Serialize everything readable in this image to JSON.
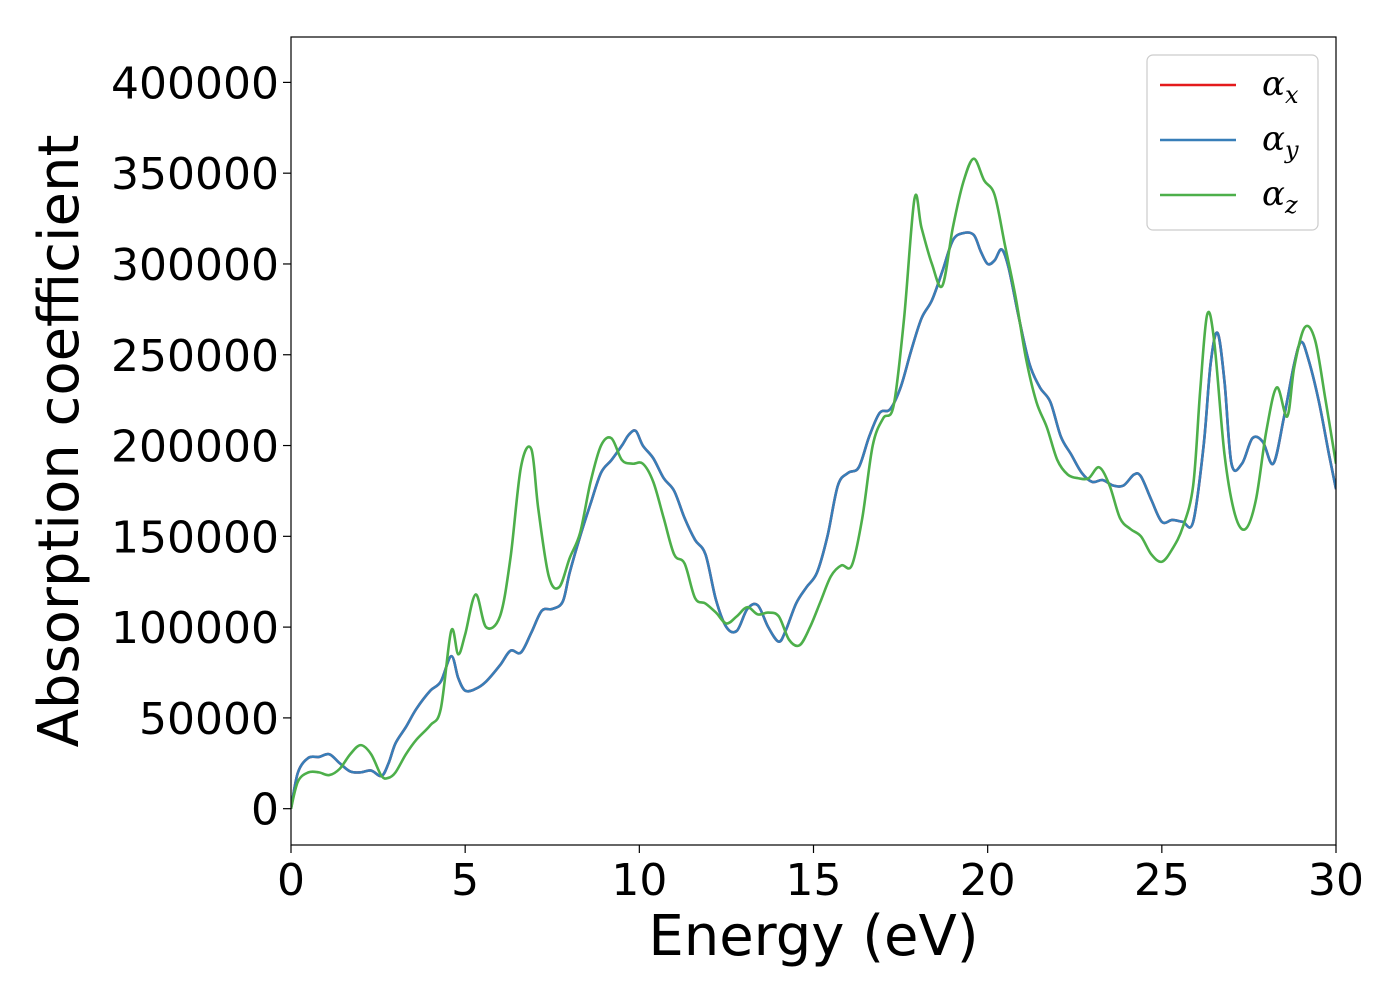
{
  "chart_data": {
    "type": "line",
    "xlabel": "Energy (eV)",
    "ylabel": "Absorption coefficient",
    "xlim": [
      0,
      30
    ],
    "ylim": [
      -20000,
      425000
    ],
    "xticks": [
      0,
      5,
      10,
      15,
      20,
      25,
      30
    ],
    "yticks": [
      0,
      50000,
      100000,
      150000,
      200000,
      250000,
      300000,
      350000,
      400000
    ],
    "grid": false,
    "legend_position": "top-right",
    "series": [
      {
        "name": "α",
        "subscript": "x",
        "color": "#e41a1c",
        "x": [
          0,
          0.2,
          0.5,
          0.8,
          1.1,
          1.4,
          1.7,
          2.0,
          2.3,
          2.6,
          2.8,
          3.0,
          3.3,
          3.6,
          4.0,
          4.3,
          4.6,
          4.8,
          5.0,
          5.3,
          5.6,
          6.0,
          6.3,
          6.6,
          6.9,
          7.2,
          7.5,
          7.8,
          8.0,
          8.3,
          8.6,
          8.9,
          9.2,
          9.5,
          9.7,
          9.9,
          10.1,
          10.4,
          10.7,
          11.0,
          11.3,
          11.6,
          11.9,
          12.2,
          12.5,
          12.8,
          13.1,
          13.4,
          13.7,
          14.0,
          14.2,
          14.5,
          14.8,
          15.1,
          15.4,
          15.7,
          16.0,
          16.3,
          16.6,
          16.9,
          17.2,
          17.5,
          17.8,
          18.1,
          18.4,
          18.7,
          19.0,
          19.3,
          19.6,
          19.8,
          20.0,
          20.2,
          20.4,
          20.6,
          20.9,
          21.2,
          21.5,
          21.8,
          22.1,
          22.4,
          22.7,
          23.0,
          23.3,
          23.6,
          23.9,
          24.2,
          24.4,
          24.7,
          25.0,
          25.3,
          25.6,
          25.9,
          26.2,
          26.4,
          26.6,
          26.8,
          27.0,
          27.3,
          27.6,
          27.9,
          28.2,
          28.5,
          28.8,
          29.0,
          29.2,
          29.5,
          29.8,
          30.0
        ],
        "y": [
          0,
          20000,
          28000,
          28500,
          30000,
          25000,
          20500,
          20000,
          21000,
          18000,
          25000,
          36000,
          45000,
          55000,
          65000,
          70000,
          84000,
          72000,
          65000,
          66000,
          70000,
          79000,
          87000,
          86000,
          97000,
          109000,
          110000,
          114000,
          130000,
          150000,
          168000,
          185000,
          192000,
          200000,
          206000,
          208000,
          200000,
          193000,
          182000,
          175000,
          160000,
          148000,
          140000,
          115000,
          100000,
          98000,
          110000,
          112000,
          100000,
          92000,
          98000,
          113000,
          122000,
          130000,
          150000,
          178000,
          185000,
          188000,
          205000,
          218000,
          220000,
          232000,
          252000,
          270000,
          280000,
          296000,
          313000,
          317000,
          316000,
          307000,
          300000,
          302000,
          308000,
          298000,
          270000,
          245000,
          232000,
          224000,
          205000,
          195000,
          185000,
          180000,
          181000,
          178000,
          178000,
          184000,
          183000,
          170000,
          158000,
          159000,
          158000,
          158000,
          200000,
          245000,
          262000,
          235000,
          190000,
          190000,
          204000,
          202000,
          190000,
          215000,
          245000,
          257000,
          248000,
          225000,
          195000,
          176000
        ]
      },
      {
        "name": "α",
        "subscript": "y",
        "color": "#377eb8",
        "x": [
          0,
          0.2,
          0.5,
          0.8,
          1.1,
          1.4,
          1.7,
          2.0,
          2.3,
          2.6,
          2.8,
          3.0,
          3.3,
          3.6,
          4.0,
          4.3,
          4.6,
          4.8,
          5.0,
          5.3,
          5.6,
          6.0,
          6.3,
          6.6,
          6.9,
          7.2,
          7.5,
          7.8,
          8.0,
          8.3,
          8.6,
          8.9,
          9.2,
          9.5,
          9.7,
          9.9,
          10.1,
          10.4,
          10.7,
          11.0,
          11.3,
          11.6,
          11.9,
          12.2,
          12.5,
          12.8,
          13.1,
          13.4,
          13.7,
          14.0,
          14.2,
          14.5,
          14.8,
          15.1,
          15.4,
          15.7,
          16.0,
          16.3,
          16.6,
          16.9,
          17.2,
          17.5,
          17.8,
          18.1,
          18.4,
          18.7,
          19.0,
          19.3,
          19.6,
          19.8,
          20.0,
          20.2,
          20.4,
          20.6,
          20.9,
          21.2,
          21.5,
          21.8,
          22.1,
          22.4,
          22.7,
          23.0,
          23.3,
          23.6,
          23.9,
          24.2,
          24.4,
          24.7,
          25.0,
          25.3,
          25.6,
          25.9,
          26.2,
          26.4,
          26.6,
          26.8,
          27.0,
          27.3,
          27.6,
          27.9,
          28.2,
          28.5,
          28.8,
          29.0,
          29.2,
          29.5,
          29.8,
          30.0
        ],
        "y": [
          0,
          20000,
          28000,
          28500,
          30000,
          25000,
          20500,
          20000,
          21000,
          18000,
          25000,
          36000,
          45000,
          55000,
          65000,
          70000,
          84000,
          72000,
          65000,
          66000,
          70000,
          79000,
          87000,
          86000,
          97000,
          109000,
          110000,
          114000,
          130000,
          150000,
          168000,
          185000,
          192000,
          200000,
          206000,
          208000,
          200000,
          193000,
          182000,
          175000,
          160000,
          148000,
          140000,
          115000,
          100000,
          98000,
          110000,
          112000,
          100000,
          92000,
          98000,
          113000,
          122000,
          130000,
          150000,
          178000,
          185000,
          188000,
          205000,
          218000,
          220000,
          232000,
          252000,
          270000,
          280000,
          296000,
          313000,
          317000,
          316000,
          307000,
          300000,
          302000,
          308000,
          298000,
          270000,
          245000,
          232000,
          224000,
          205000,
          195000,
          185000,
          180000,
          181000,
          178000,
          178000,
          184000,
          183000,
          170000,
          158000,
          159000,
          158000,
          158000,
          200000,
          245000,
          262000,
          235000,
          190000,
          190000,
          204000,
          202000,
          190000,
          215000,
          245000,
          257000,
          248000,
          225000,
          195000,
          176000
        ]
      },
      {
        "name": "α",
        "subscript": "z",
        "color": "#4daf4a",
        "x": [
          0,
          0.2,
          0.5,
          0.8,
          1.1,
          1.4,
          1.7,
          2.0,
          2.3,
          2.6,
          2.8,
          3.0,
          3.3,
          3.6,
          4.0,
          4.3,
          4.6,
          4.8,
          5.0,
          5.3,
          5.6,
          6.0,
          6.3,
          6.6,
          6.9,
          7.1,
          7.4,
          7.7,
          8.0,
          8.3,
          8.6,
          8.9,
          9.2,
          9.5,
          9.8,
          10.1,
          10.4,
          10.7,
          11.0,
          11.3,
          11.6,
          11.9,
          12.2,
          12.5,
          12.8,
          13.1,
          13.4,
          13.7,
          14.0,
          14.3,
          14.6,
          14.9,
          15.2,
          15.5,
          15.8,
          16.1,
          16.4,
          16.7,
          17.0,
          17.3,
          17.6,
          17.9,
          18.1,
          18.4,
          18.7,
          19.0,
          19.3,
          19.6,
          19.9,
          20.2,
          20.5,
          20.8,
          21.1,
          21.4,
          21.7,
          22.0,
          22.3,
          22.6,
          22.9,
          23.2,
          23.5,
          23.8,
          24.1,
          24.4,
          24.7,
          25.0,
          25.3,
          25.6,
          25.9,
          26.1,
          26.3,
          26.5,
          26.8,
          27.1,
          27.4,
          27.7,
          28.0,
          28.3,
          28.6,
          28.8,
          29.1,
          29.4,
          29.7,
          30.0
        ],
        "y": [
          0,
          15000,
          20000,
          20000,
          18500,
          22000,
          30000,
          35000,
          30000,
          18000,
          17000,
          20000,
          30000,
          38000,
          46000,
          55000,
          98000,
          85000,
          96000,
          118000,
          100000,
          106000,
          138000,
          188000,
          198000,
          165000,
          128000,
          122000,
          138000,
          152000,
          180000,
          200000,
          204000,
          192000,
          190000,
          190000,
          180000,
          160000,
          140000,
          135000,
          116000,
          113000,
          108000,
          102000,
          106000,
          111000,
          107000,
          108000,
          106000,
          93000,
          90000,
          100000,
          114000,
          128000,
          134000,
          134000,
          160000,
          200000,
          215000,
          222000,
          270000,
          336000,
          320000,
          300000,
          288000,
          320000,
          345000,
          358000,
          346000,
          338000,
          310000,
          282000,
          248000,
          224000,
          210000,
          192000,
          184000,
          182000,
          182000,
          188000,
          178000,
          160000,
          154000,
          150000,
          140000,
          136000,
          143000,
          155000,
          178000,
          230000,
          272000,
          258000,
          195000,
          162000,
          154000,
          170000,
          208000,
          232000,
          216000,
          243000,
          265000,
          258000,
          225000,
          190000
        ]
      }
    ]
  }
}
